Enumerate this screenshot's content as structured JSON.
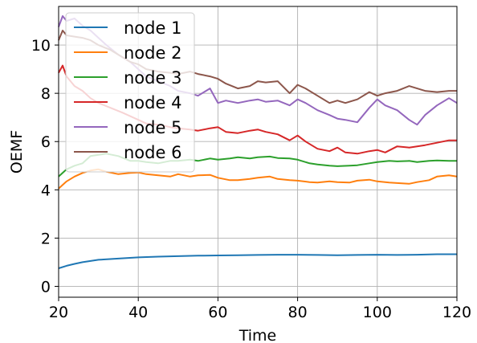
{
  "chart_data": {
    "type": "line",
    "title": "",
    "xlabel": "Time",
    "ylabel": "OEMF",
    "xlim": [
      20,
      120
    ],
    "ylim": [
      -0.45,
      11.6
    ],
    "xticks": [
      20,
      40,
      60,
      80,
      100,
      120
    ],
    "yticks": [
      0,
      2,
      4,
      6,
      8,
      10
    ],
    "grid": true,
    "legend_position": "upper-left",
    "series": [
      {
        "name": "node 1",
        "color": "#1f77b4",
        "x": [
          20,
          22,
          24,
          26,
          28,
          30,
          35,
          40,
          45,
          50,
          55,
          60,
          65,
          70,
          75,
          80,
          85,
          90,
          95,
          100,
          105,
          110,
          115,
          120
        ],
        "values": [
          0.75,
          0.85,
          0.93,
          1.0,
          1.05,
          1.1,
          1.15,
          1.2,
          1.23,
          1.25,
          1.27,
          1.28,
          1.29,
          1.3,
          1.31,
          1.31,
          1.3,
          1.29,
          1.3,
          1.31,
          1.3,
          1.31,
          1.33,
          1.33
        ]
      },
      {
        "name": "node 2",
        "color": "#ff7f0e",
        "x": [
          20,
          22,
          24,
          26,
          28,
          30,
          32,
          35,
          38,
          40,
          42,
          45,
          48,
          50,
          53,
          55,
          58,
          60,
          63,
          65,
          68,
          70,
          73,
          75,
          78,
          80,
          83,
          85,
          88,
          90,
          93,
          95,
          98,
          100,
          103,
          105,
          108,
          110,
          113,
          115,
          118,
          120
        ],
        "values": [
          4.05,
          4.35,
          4.55,
          4.7,
          4.8,
          4.85,
          4.75,
          4.65,
          4.7,
          4.72,
          4.65,
          4.6,
          4.55,
          4.65,
          4.55,
          4.6,
          4.62,
          4.5,
          4.4,
          4.4,
          4.45,
          4.5,
          4.55,
          4.45,
          4.4,
          4.38,
          4.32,
          4.3,
          4.35,
          4.32,
          4.3,
          4.38,
          4.42,
          4.35,
          4.3,
          4.28,
          4.25,
          4.32,
          4.4,
          4.55,
          4.6,
          4.55
        ]
      },
      {
        "name": "node 3",
        "color": "#2ca02c",
        "x": [
          20,
          22,
          24,
          26,
          28,
          30,
          32,
          35,
          38,
          40,
          42,
          45,
          48,
          50,
          53,
          55,
          58,
          60,
          63,
          65,
          68,
          70,
          73,
          75,
          78,
          80,
          83,
          85,
          88,
          90,
          93,
          95,
          98,
          100,
          103,
          105,
          108,
          110,
          113,
          115,
          118,
          120
        ],
        "values": [
          4.55,
          4.85,
          5.0,
          5.1,
          5.4,
          5.45,
          5.5,
          5.4,
          5.2,
          5.2,
          5.15,
          5.1,
          5.2,
          5.2,
          5.25,
          5.2,
          5.3,
          5.25,
          5.3,
          5.35,
          5.3,
          5.35,
          5.38,
          5.32,
          5.3,
          5.25,
          5.1,
          5.05,
          5.0,
          4.98,
          5.0,
          5.02,
          5.1,
          5.15,
          5.2,
          5.18,
          5.2,
          5.15,
          5.2,
          5.22,
          5.2,
          5.2
        ]
      },
      {
        "name": "node 4",
        "color": "#d62728",
        "x": [
          20,
          21,
          22,
          24,
          26,
          28,
          30,
          33,
          36,
          38,
          40,
          42,
          45,
          48,
          50,
          53,
          55,
          58,
          60,
          62,
          65,
          68,
          70,
          72,
          75,
          78,
          80,
          82,
          85,
          88,
          90,
          92,
          95,
          98,
          100,
          102,
          105,
          108,
          110,
          112,
          115,
          118,
          120
        ],
        "values": [
          8.85,
          9.15,
          8.7,
          8.3,
          8.1,
          7.8,
          7.6,
          7.4,
          7.2,
          7.05,
          6.9,
          6.75,
          6.7,
          6.6,
          6.55,
          6.5,
          6.45,
          6.55,
          6.6,
          6.4,
          6.35,
          6.45,
          6.5,
          6.4,
          6.3,
          6.05,
          6.25,
          6.0,
          5.7,
          5.6,
          5.75,
          5.55,
          5.5,
          5.6,
          5.65,
          5.55,
          5.8,
          5.75,
          5.8,
          5.85,
          5.95,
          6.05,
          6.05
        ]
      },
      {
        "name": "node 5",
        "color": "#9467bd",
        "x": [
          20,
          21,
          22,
          24,
          26,
          28,
          30,
          32,
          35,
          38,
          40,
          42,
          45,
          48,
          50,
          53,
          55,
          58,
          60,
          62,
          65,
          68,
          70,
          72,
          75,
          78,
          80,
          82,
          85,
          88,
          90,
          92,
          95,
          98,
          100,
          102,
          105,
          108,
          110,
          112,
          115,
          118,
          120
        ],
        "values": [
          10.75,
          11.2,
          11.0,
          11.1,
          10.8,
          10.6,
          10.3,
          10.0,
          9.6,
          9.3,
          9.0,
          8.7,
          8.5,
          8.3,
          8.1,
          8.0,
          7.9,
          8.2,
          7.6,
          7.7,
          7.6,
          7.7,
          7.75,
          7.65,
          7.7,
          7.5,
          7.75,
          7.6,
          7.3,
          7.1,
          6.95,
          6.9,
          6.8,
          7.4,
          7.75,
          7.5,
          7.3,
          6.9,
          6.7,
          7.1,
          7.5,
          7.8,
          7.6
        ]
      },
      {
        "name": "node 6",
        "color": "#8c564b",
        "x": [
          20,
          21,
          22,
          24,
          26,
          28,
          30,
          33,
          36,
          38,
          40,
          42,
          45,
          48,
          50,
          53,
          55,
          58,
          60,
          62,
          65,
          68,
          70,
          72,
          75,
          78,
          80,
          82,
          85,
          88,
          90,
          92,
          95,
          98,
          100,
          102,
          105,
          108,
          110,
          112,
          115,
          118,
          120
        ],
        "values": [
          10.2,
          10.6,
          10.4,
          10.35,
          10.3,
          10.2,
          10.0,
          9.8,
          9.5,
          9.3,
          9.2,
          9.0,
          8.9,
          8.85,
          8.8,
          8.9,
          8.8,
          8.7,
          8.6,
          8.4,
          8.2,
          8.3,
          8.5,
          8.45,
          8.5,
          8.0,
          8.35,
          8.2,
          7.9,
          7.6,
          7.7,
          7.6,
          7.75,
          8.05,
          7.9,
          8.0,
          8.1,
          8.3,
          8.2,
          8.1,
          8.05,
          8.1,
          8.1
        ]
      }
    ]
  }
}
